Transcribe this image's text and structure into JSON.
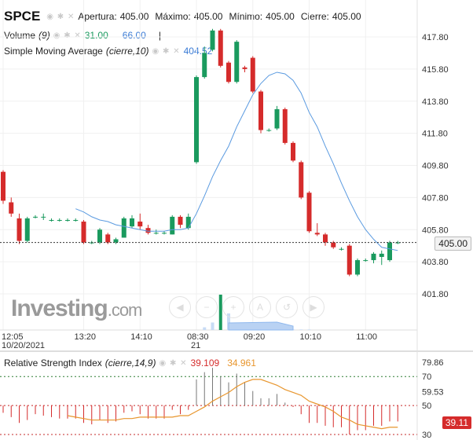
{
  "header": {
    "symbol": "SPCE",
    "open_label": "Apertura:",
    "open_value": "405.00",
    "high_label": "Máximo:",
    "high_value": "405.00",
    "low_label": "Mínimo:",
    "low_value": "405.00",
    "close_label": "Cierre:",
    "close_value": "405.00"
  },
  "volume_legend": {
    "label": "Volume",
    "param": "(9)",
    "value1": "31.00",
    "value2": "66.00"
  },
  "sma_legend": {
    "label": "Simple Moving Average",
    "param": "(cierre,10)",
    "value": "404.52"
  },
  "price_badge": "405.00",
  "watermark": {
    "brand": "Investing",
    "suffix": ".com"
  },
  "rsi_legend": {
    "label": "Relative Strength Index",
    "param": "(cierre,14,9)",
    "value1": "39.109",
    "value2": "34.961"
  },
  "rsi_badge": "39.11",
  "colors": {
    "up": "#1a9a5e",
    "down": "#d52b2b",
    "sma": "#5a9ae0",
    "rsi_signal": "#e8962e",
    "volume": "#8fb8ee"
  },
  "chart_data": [
    {
      "type": "candlestick",
      "y_ticks": [
        "417.80",
        "415.80",
        "413.80",
        "411.80",
        "409.80",
        "407.80",
        "405.80",
        "403.80",
        "401.80"
      ],
      "ylim": [
        400.5,
        419.3
      ],
      "x_ticks": [
        {
          "label": "12:05",
          "sub": "10/20/2021",
          "i": 0
        },
        {
          "label": "13:20",
          "sub": "",
          "i": 10
        },
        {
          "label": "14:10",
          "sub": "",
          "i": 17
        },
        {
          "label": "08:30",
          "sub": "21",
          "i": 24
        },
        {
          "label": "09:20",
          "sub": "",
          "i": 31
        },
        {
          "label": "10:10",
          "sub": "",
          "i": 38
        },
        {
          "label": "11:00",
          "sub": "",
          "i": 45
        }
      ],
      "candles": [
        {
          "o": 409.4,
          "h": 409.5,
          "l": 407.4,
          "c": 407.6
        },
        {
          "o": 407.5,
          "h": 407.8,
          "l": 406.6,
          "c": 406.8
        },
        {
          "o": 406.5,
          "h": 406.8,
          "l": 404.9,
          "c": 405.1
        },
        {
          "o": 405.1,
          "h": 406.6,
          "l": 405.0,
          "c": 406.5
        },
        {
          "o": 406.6,
          "h": 406.7,
          "l": 406.5,
          "c": 406.6
        },
        {
          "o": 406.6,
          "h": 406.8,
          "l": 406.4,
          "c": 406.6
        },
        {
          "o": 406.4,
          "h": 406.5,
          "l": 406.3,
          "c": 406.4
        },
        {
          "o": 406.4,
          "h": 406.5,
          "l": 406.3,
          "c": 406.4
        },
        {
          "o": 406.4,
          "h": 406.5,
          "l": 406.3,
          "c": 406.4
        },
        {
          "o": 406.4,
          "h": 406.5,
          "l": 406.3,
          "c": 406.4
        },
        {
          "o": 406.3,
          "h": 406.4,
          "l": 404.9,
          "c": 405.0
        },
        {
          "o": 405.0,
          "h": 405.1,
          "l": 404.9,
          "c": 405.0
        },
        {
          "o": 405.0,
          "h": 405.9,
          "l": 404.9,
          "c": 405.8
        },
        {
          "o": 405.5,
          "h": 405.6,
          "l": 404.9,
          "c": 405.0
        },
        {
          "o": 405.0,
          "h": 405.3,
          "l": 404.9,
          "c": 405.2
        },
        {
          "o": 405.3,
          "h": 406.6,
          "l": 405.3,
          "c": 406.5
        },
        {
          "o": 406.0,
          "h": 406.7,
          "l": 405.9,
          "c": 406.5
        },
        {
          "o": 406.3,
          "h": 406.8,
          "l": 405.8,
          "c": 406.0
        },
        {
          "o": 405.9,
          "h": 406.1,
          "l": 405.5,
          "c": 405.6
        },
        {
          "o": 405.6,
          "h": 405.8,
          "l": 405.5,
          "c": 405.6
        },
        {
          "o": 405.6,
          "h": 405.7,
          "l": 405.5,
          "c": 405.6
        },
        {
          "o": 405.5,
          "h": 406.7,
          "l": 405.5,
          "c": 406.6
        },
        {
          "o": 406.6,
          "h": 406.7,
          "l": 405.9,
          "c": 406.1
        },
        {
          "o": 405.9,
          "h": 406.8,
          "l": 405.8,
          "c": 406.6
        },
        {
          "o": 410.0,
          "h": 415.4,
          "l": 409.9,
          "c": 415.3
        },
        {
          "o": 415.3,
          "h": 417.2,
          "l": 415.2,
          "c": 416.8
        },
        {
          "o": 417.0,
          "h": 418.3,
          "l": 416.9,
          "c": 418.2
        },
        {
          "o": 418.2,
          "h": 418.3,
          "l": 415.9,
          "c": 416.0
        },
        {
          "o": 416.2,
          "h": 416.3,
          "l": 414.9,
          "c": 415.0
        },
        {
          "o": 415.0,
          "h": 417.6,
          "l": 414.9,
          "c": 417.5
        },
        {
          "o": 415.9,
          "h": 416.0,
          "l": 415.6,
          "c": 415.8
        },
        {
          "o": 416.5,
          "h": 416.6,
          "l": 414.3,
          "c": 414.4
        },
        {
          "o": 414.4,
          "h": 414.5,
          "l": 411.8,
          "c": 412.0
        },
        {
          "o": 412.0,
          "h": 412.1,
          "l": 411.9,
          "c": 412.0
        },
        {
          "o": 412.1,
          "h": 413.5,
          "l": 412.0,
          "c": 413.3
        },
        {
          "o": 413.3,
          "h": 413.4,
          "l": 411.1,
          "c": 411.2
        },
        {
          "o": 411.2,
          "h": 411.3,
          "l": 410.0,
          "c": 410.1
        },
        {
          "o": 410.0,
          "h": 410.1,
          "l": 407.7,
          "c": 407.8
        },
        {
          "o": 408.1,
          "h": 408.2,
          "l": 405.6,
          "c": 405.7
        },
        {
          "o": 405.6,
          "h": 406.2,
          "l": 405.4,
          "c": 405.5
        },
        {
          "o": 405.5,
          "h": 405.6,
          "l": 404.8,
          "c": 405.0
        },
        {
          "o": 405.0,
          "h": 405.1,
          "l": 404.6,
          "c": 404.7
        },
        {
          "o": 404.6,
          "h": 404.7,
          "l": 404.5,
          "c": 404.6
        },
        {
          "o": 404.8,
          "h": 404.9,
          "l": 402.9,
          "c": 403.0
        },
        {
          "o": 403.0,
          "h": 404.0,
          "l": 402.9,
          "c": 403.9
        },
        {
          "o": 403.9,
          "h": 404.0,
          "l": 403.8,
          "c": 403.9
        },
        {
          "o": 403.9,
          "h": 404.4,
          "l": 403.7,
          "c": 404.3
        },
        {
          "o": 404.1,
          "h": 404.5,
          "l": 403.6,
          "c": 404.3
        },
        {
          "o": 403.9,
          "h": 405.1,
          "l": 403.8,
          "c": 405.0
        },
        {
          "o": 405.0,
          "h": 405.1,
          "l": 404.9,
          "c": 405.0
        }
      ],
      "sma": [
        null,
        null,
        null,
        null,
        null,
        null,
        null,
        null,
        null,
        407.1,
        406.9,
        406.6,
        406.4,
        406.3,
        406.1,
        406.0,
        405.9,
        405.8,
        405.7,
        405.7,
        405.7,
        405.8,
        405.8,
        405.9,
        406.8,
        407.9,
        409.1,
        410.1,
        411.0,
        412.2,
        413.2,
        414.2,
        414.9,
        415.4,
        415.6,
        415.5,
        415.1,
        414.3,
        413.1,
        412.2,
        411.0,
        409.9,
        408.7,
        407.6,
        406.6,
        405.8,
        405.2,
        404.7,
        404.6,
        404.5
      ],
      "volume": [
        0,
        0,
        0,
        0,
        0,
        0,
        0,
        0,
        0,
        0,
        0,
        0,
        0,
        0,
        0,
        0,
        0,
        0,
        0,
        0,
        0,
        0,
        0,
        0,
        0,
        5,
        14,
        66,
        31,
        12,
        8,
        3,
        2,
        2,
        1,
        1,
        1,
        1,
        1,
        0,
        0,
        0,
        0,
        0,
        0,
        0,
        0,
        0,
        0,
        0
      ],
      "last_price": 405.0
    },
    {
      "type": "line",
      "title": "Relative Strength Index",
      "y_ticks": [
        "79.86",
        "70",
        "59.53",
        "50",
        "39.11",
        "30"
      ],
      "ylim": [
        27,
        83
      ],
      "levels": [
        70,
        50,
        30
      ],
      "rsi": [
        45,
        42,
        38,
        40,
        44,
        43,
        42,
        41,
        41,
        41,
        38,
        37,
        40,
        38,
        39,
        45,
        46,
        44,
        41,
        41,
        41,
        47,
        44,
        47,
        68,
        73,
        76,
        70,
        66,
        72,
        66,
        60,
        55,
        55,
        58,
        52,
        49,
        44,
        38,
        38,
        36,
        35,
        35,
        30,
        33,
        33,
        36,
        36,
        39,
        39
      ],
      "signal": [
        null,
        null,
        null,
        null,
        null,
        null,
        null,
        null,
        43,
        42,
        41,
        40,
        40,
        40,
        40,
        41,
        41,
        42,
        42,
        42,
        42,
        42,
        43,
        43,
        46,
        49,
        53,
        56,
        59,
        63,
        66,
        68,
        68,
        66,
        64,
        61,
        59,
        57,
        53,
        51,
        49,
        46,
        42,
        40,
        37,
        36,
        35,
        34,
        35,
        35
      ]
    }
  ]
}
